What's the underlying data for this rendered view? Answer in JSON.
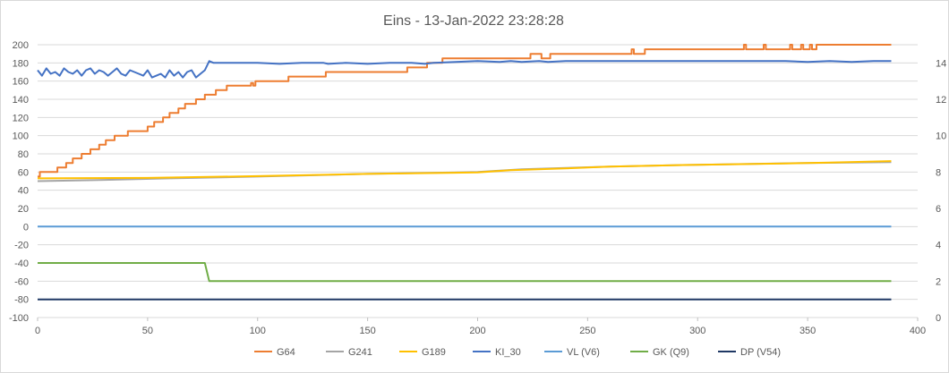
{
  "chart_data": {
    "type": "line",
    "title": "Eins - 13-Jan-2022 23:28:28",
    "legend_position": "bottom",
    "grid": true,
    "xlim": [
      0,
      400
    ],
    "x_ticks": [
      "0",
      "50",
      "100",
      "150",
      "200",
      "250",
      "300",
      "350",
      "400"
    ],
    "ylim": [
      -100,
      200
    ],
    "y_ticks": [
      "200",
      "180",
      "160",
      "140",
      "120",
      "100",
      "80",
      "60",
      "40",
      "20",
      "0",
      "-20",
      "-40",
      "-60",
      "-80",
      "-100"
    ],
    "y2lim": [
      0,
      15
    ],
    "y2_ticks": [
      "14",
      "12",
      "10",
      "8",
      "6",
      "4",
      "2",
      "0"
    ],
    "series": [
      {
        "name": "G64",
        "color": "#ed7d31",
        "axis": "left",
        "step": true,
        "points": [
          [
            0,
            55
          ],
          [
            1,
            60
          ],
          [
            8,
            60
          ],
          [
            9,
            65
          ],
          [
            12,
            65
          ],
          [
            13,
            70
          ],
          [
            15,
            70
          ],
          [
            16,
            75
          ],
          [
            19,
            75
          ],
          [
            20,
            80
          ],
          [
            23,
            80
          ],
          [
            24,
            85
          ],
          [
            27,
            85
          ],
          [
            28,
            90
          ],
          [
            30,
            90
          ],
          [
            31,
            95
          ],
          [
            34,
            95
          ],
          [
            35,
            100
          ],
          [
            40,
            100
          ],
          [
            41,
            105
          ],
          [
            49,
            105
          ],
          [
            50,
            110
          ],
          [
            52,
            110
          ],
          [
            53,
            115
          ],
          [
            56,
            115
          ],
          [
            57,
            120
          ],
          [
            59,
            120
          ],
          [
            60,
            125
          ],
          [
            63,
            125
          ],
          [
            64,
            130
          ],
          [
            66,
            130
          ],
          [
            67,
            135
          ],
          [
            71,
            135
          ],
          [
            72,
            140
          ],
          [
            75,
            140
          ],
          [
            76,
            145
          ],
          [
            80,
            145
          ],
          [
            81,
            150
          ],
          [
            85,
            150
          ],
          [
            86,
            155
          ],
          [
            96,
            155
          ],
          [
            97,
            158
          ],
          [
            98,
            155
          ],
          [
            99,
            160
          ],
          [
            113,
            160
          ],
          [
            114,
            165
          ],
          [
            130,
            165
          ],
          [
            131,
            170
          ],
          [
            167,
            170
          ],
          [
            168,
            175
          ],
          [
            176,
            175
          ],
          [
            177,
            180
          ],
          [
            183,
            180
          ],
          [
            184,
            185
          ],
          [
            223,
            185
          ],
          [
            224,
            190
          ],
          [
            228,
            190
          ],
          [
            229,
            185
          ],
          [
            232,
            185
          ],
          [
            233,
            190
          ],
          [
            269,
            190
          ],
          [
            270,
            195
          ],
          [
            271,
            190
          ],
          [
            275,
            190
          ],
          [
            276,
            195
          ],
          [
            320,
            195
          ],
          [
            321,
            200
          ],
          [
            322,
            195
          ],
          [
            329,
            195
          ],
          [
            330,
            200
          ],
          [
            331,
            195
          ],
          [
            341,
            195
          ],
          [
            342,
            200
          ],
          [
            343,
            195
          ],
          [
            346,
            195
          ],
          [
            347,
            200
          ],
          [
            348,
            195
          ],
          [
            350,
            195
          ],
          [
            351,
            200
          ],
          [
            352,
            195
          ],
          [
            353,
            195
          ],
          [
            354,
            200
          ],
          [
            388,
            200
          ]
        ]
      },
      {
        "name": "G241",
        "color": "#a5a5a5",
        "axis": "left",
        "step": false,
        "points": [
          [
            0,
            50
          ],
          [
            23,
            51
          ],
          [
            60,
            53
          ],
          [
            100,
            55
          ],
          [
            150,
            58
          ],
          [
            200,
            60
          ],
          [
            220,
            63
          ],
          [
            260,
            66
          ],
          [
            300,
            68
          ],
          [
            350,
            70
          ],
          [
            388,
            71
          ]
        ]
      },
      {
        "name": "G189",
        "color": "#ffc000",
        "axis": "left",
        "step": false,
        "points": [
          [
            0,
            53
          ],
          [
            50,
            53.5
          ],
          [
            100,
            55.5
          ],
          [
            150,
            58
          ],
          [
            200,
            59.5
          ],
          [
            215,
            62
          ],
          [
            240,
            64
          ],
          [
            260,
            66
          ],
          [
            300,
            68
          ],
          [
            340,
            69.5
          ],
          [
            360,
            70.5
          ],
          [
            388,
            72
          ]
        ]
      },
      {
        "name": "KI_30",
        "color": "#4472c4",
        "axis": "right",
        "step": false,
        "points": [
          [
            0,
            13.6
          ],
          [
            2,
            13.3
          ],
          [
            4,
            13.7
          ],
          [
            6,
            13.4
          ],
          [
            8,
            13.5
          ],
          [
            10,
            13.3
          ],
          [
            12,
            13.7
          ],
          [
            14,
            13.5
          ],
          [
            16,
            13.4
          ],
          [
            18,
            13.6
          ],
          [
            20,
            13.3
          ],
          [
            22,
            13.6
          ],
          [
            24,
            13.7
          ],
          [
            26,
            13.4
          ],
          [
            28,
            13.6
          ],
          [
            30,
            13.5
          ],
          [
            32,
            13.3
          ],
          [
            34,
            13.5
          ],
          [
            36,
            13.7
          ],
          [
            38,
            13.4
          ],
          [
            40,
            13.3
          ],
          [
            42,
            13.6
          ],
          [
            44,
            13.5
          ],
          [
            46,
            13.4
          ],
          [
            48,
            13.3
          ],
          [
            50,
            13.6
          ],
          [
            52,
            13.2
          ],
          [
            54,
            13.3
          ],
          [
            56,
            13.4
          ],
          [
            58,
            13.2
          ],
          [
            60,
            13.6
          ],
          [
            62,
            13.3
          ],
          [
            64,
            13.5
          ],
          [
            66,
            13.2
          ],
          [
            68,
            13.5
          ],
          [
            70,
            13.6
          ],
          [
            72,
            13.2
          ],
          [
            74,
            13.4
          ],
          [
            76,
            13.6
          ],
          [
            78,
            14.1
          ],
          [
            80,
            14
          ],
          [
            90,
            14
          ],
          [
            100,
            14
          ],
          [
            110,
            13.95
          ],
          [
            120,
            14
          ],
          [
            130,
            14
          ],
          [
            132,
            13.95
          ],
          [
            140,
            14
          ],
          [
            150,
            13.95
          ],
          [
            160,
            14
          ],
          [
            170,
            14
          ],
          [
            176,
            13.95
          ],
          [
            180,
            14
          ],
          [
            190,
            14.05
          ],
          [
            200,
            14.1
          ],
          [
            210,
            14.05
          ],
          [
            215,
            14.1
          ],
          [
            220,
            14.05
          ],
          [
            228,
            14.1
          ],
          [
            232,
            14.05
          ],
          [
            240,
            14.1
          ],
          [
            260,
            14.1
          ],
          [
            280,
            14.1
          ],
          [
            300,
            14.1
          ],
          [
            320,
            14.1
          ],
          [
            340,
            14.1
          ],
          [
            350,
            14.05
          ],
          [
            360,
            14.1
          ],
          [
            370,
            14.05
          ],
          [
            380,
            14.1
          ],
          [
            388,
            14.1
          ]
        ]
      },
      {
        "name": "VL (V6)",
        "color": "#5b9bd5",
        "axis": "left",
        "step": false,
        "points": [
          [
            0,
            0
          ],
          [
            388,
            0
          ]
        ]
      },
      {
        "name": "GK (Q9)",
        "color": "#70ad47",
        "axis": "left",
        "step": false,
        "points": [
          [
            0,
            -40
          ],
          [
            76,
            -40
          ],
          [
            78,
            -60
          ],
          [
            388,
            -60
          ]
        ]
      },
      {
        "name": "DP (V54)",
        "color": "#1f3864",
        "axis": "left",
        "step": false,
        "points": [
          [
            0,
            -80
          ],
          [
            388,
            -80
          ]
        ]
      }
    ]
  }
}
